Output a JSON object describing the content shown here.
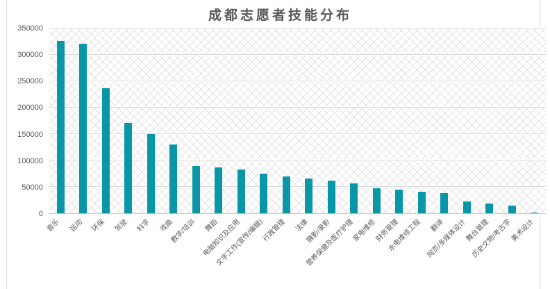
{
  "title": "成都志愿者技能分布",
  "colors": {
    "bar": "#0997A7",
    "title_text": "#595959",
    "axis_text": "#595959",
    "gridline": "#D9D9D9",
    "axis_line": "#C6C6C6",
    "frame_border": "#D9D9D9",
    "pattern_line": "#E3E3E3",
    "background": "#FFFFFF"
  },
  "chart_data": {
    "type": "bar",
    "title": "成都志愿者技能分布",
    "categories": [
      "音乐",
      "运动",
      "环保",
      "驾驶",
      "科学",
      "戏曲",
      "教学/培训",
      "舞蹈",
      "电脑知识及应用",
      "文字工作(宣传/编辑)",
      "行政管理",
      "法律",
      "摄影/录影",
      "营养保健及医疗护理",
      "家电维修",
      "财务管理",
      "水电维修工程",
      "翻译",
      "网页/多媒体设计",
      "舞台管理",
      "历史文物/考古学",
      "美术设计"
    ],
    "values": [
      325000,
      320000,
      236000,
      170000,
      150000,
      130000,
      89000,
      86000,
      83000,
      75000,
      70000,
      65000,
      62000,
      57000,
      47000,
      45000,
      41000,
      38000,
      22000,
      18000,
      14000,
      1000
    ],
    "xlabel": "",
    "ylabel": "",
    "ylim": [
      0,
      350000
    ],
    "ytick_interval": 50000,
    "ytick_labels": [
      "0",
      "50000",
      "100000",
      "150000",
      "200000",
      "250000",
      "300000",
      "350000"
    ],
    "grid": true,
    "legend_position": "none",
    "plot_background": "diagonal-crosshatch-pattern",
    "bar_color": "#0997A7"
  }
}
